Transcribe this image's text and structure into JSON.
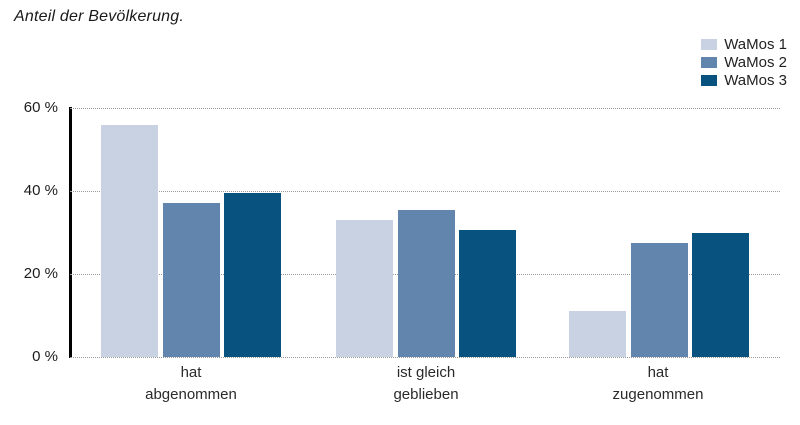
{
  "chart_data": {
    "type": "bar",
    "title": "Anteil der Bevölkerung.",
    "categories": [
      [
        "hat",
        "abgenommen"
      ],
      [
        "ist gleich",
        "geblieben"
      ],
      [
        "hat",
        "zugenommen"
      ]
    ],
    "series": [
      {
        "name": "WaMos 1",
        "color": "#c9d2e2",
        "values": [
          56,
          33,
          11
        ]
      },
      {
        "name": "WaMos 2",
        "color": "#6285ad",
        "values": [
          37,
          35.5,
          27.5
        ]
      },
      {
        "name": "WaMos 3",
        "color": "#07527f",
        "values": [
          39.5,
          30.5,
          30
        ]
      }
    ],
    "yticks": [
      0,
      20,
      40,
      60
    ],
    "ytick_labels": [
      "0 %",
      "20 %",
      "40 %",
      "60 %"
    ],
    "ylim": [
      0,
      60
    ],
    "ylabel": "",
    "xlabel": "",
    "grid": "dotted-horizontal",
    "legend_position": "top-right",
    "axis_color": "#000000",
    "gridline_color": "#9a9a9a",
    "text_color": "#1c1c1c"
  }
}
